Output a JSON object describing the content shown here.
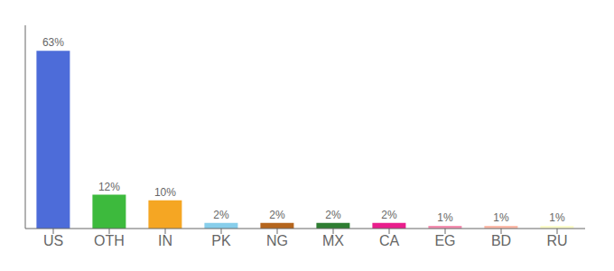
{
  "chart_data": {
    "type": "bar",
    "categories": [
      "US",
      "OTH",
      "IN",
      "PK",
      "NG",
      "MX",
      "CA",
      "EG",
      "BD",
      "RU"
    ],
    "values": [
      63,
      12,
      10,
      2,
      2,
      2,
      2,
      1,
      1,
      1
    ],
    "value_labels": [
      "63%",
      "12%",
      "10%",
      "2%",
      "2%",
      "2%",
      "2%",
      "1%",
      "1%",
      "1%"
    ],
    "data_labels": true,
    "colors": [
      "#4d6cd9",
      "#3dba3d",
      "#f5a623",
      "#87ceeb",
      "#b5651d",
      "#2e7d32",
      "#e91e8c",
      "#f48fb1",
      "#ffbbaa",
      "#ffffcc"
    ],
    "ylim": [
      0,
      72
    ],
    "tick_labels": "x",
    "grid": false
  }
}
